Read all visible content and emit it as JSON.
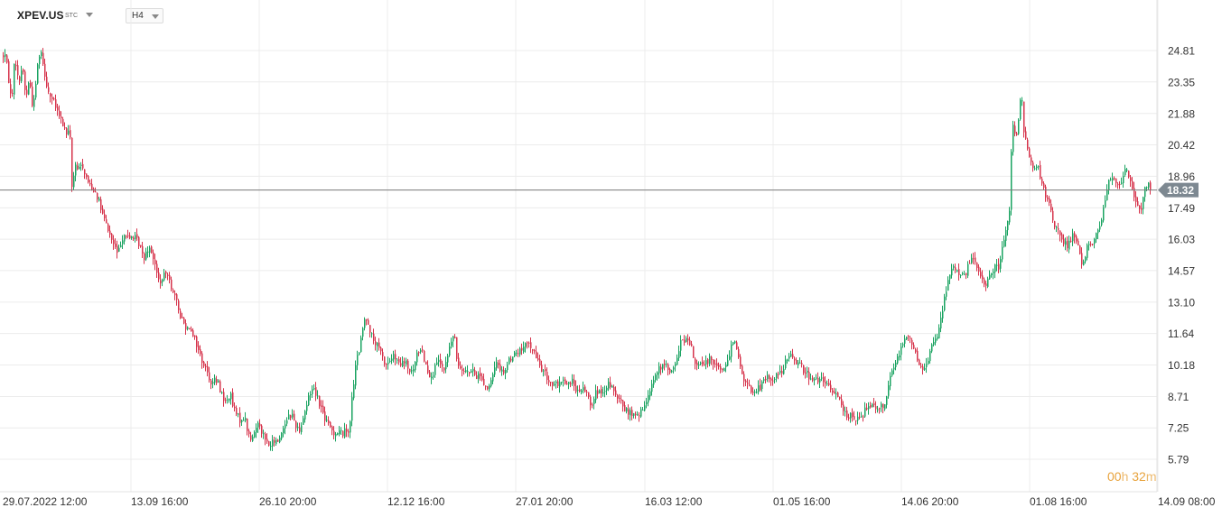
{
  "header": {
    "symbol": "XPEV.US",
    "exchange": "STC",
    "timeframe": "H4"
  },
  "countdown": {
    "hours": "00",
    "hours_unit": "h",
    "minutes": "32",
    "minutes_unit": "m"
  },
  "colors": {
    "up": "#1aa361",
    "down": "#d6334b",
    "grid": "#ececec",
    "price_line": "#7a7a7a",
    "price_tag": "#7d8891"
  },
  "chart_data": {
    "type": "candlestick",
    "title": "",
    "current_price": 18.32,
    "ylim": [
      5.79,
      26.27
    ],
    "y_ticks": [
      24.81,
      23.35,
      21.88,
      20.42,
      18.96,
      17.49,
      16.03,
      14.57,
      13.1,
      11.64,
      10.18,
      8.71,
      7.25,
      5.79
    ],
    "y_tick_labels": [
      "24.81",
      "23.35",
      "21.88",
      "20.42",
      "18.96",
      "17.49",
      "16.03",
      "14.57",
      "13.10",
      "11.64",
      "10.18",
      "8.71",
      "7.25",
      "5.79"
    ],
    "x_labels": [
      {
        "date": "29.07.2022",
        "time": "12:00"
      },
      {
        "date": "13.09",
        "time": "16:00"
      },
      {
        "date": "26.10",
        "time": "20:00"
      },
      {
        "date": "12.12",
        "time": "16:00"
      },
      {
        "date": "27.01",
        "time": "20:00"
      },
      {
        "date": "16.03",
        "time": "12:00"
      },
      {
        "date": "01.05",
        "time": "16:00"
      },
      {
        "date": "14.06",
        "time": "20:00"
      },
      {
        "date": "01.08",
        "time": "16:00"
      },
      {
        "date": "14.09",
        "time": "08:00"
      }
    ],
    "path": [
      [
        0,
        23.6
      ],
      [
        4,
        24.9
      ],
      [
        8,
        23.8
      ],
      [
        12,
        22.4
      ],
      [
        16,
        24.6
      ],
      [
        20,
        23.2
      ],
      [
        24,
        24.2
      ],
      [
        28,
        22.6
      ],
      [
        32,
        23.5
      ],
      [
        36,
        22.0
      ],
      [
        40,
        23.8
      ],
      [
        44,
        25.0
      ],
      [
        48,
        24.0
      ],
      [
        52,
        23.0
      ],
      [
        56,
        22.6
      ],
      [
        60,
        22.3
      ],
      [
        64,
        21.8
      ],
      [
        68,
        21.5
      ],
      [
        72,
        21.0
      ],
      [
        77,
        20.9
      ],
      [
        79,
        18.4
      ],
      [
        82,
        19.4
      ],
      [
        86,
        19.2
      ],
      [
        90,
        19.6
      ],
      [
        94,
        19.0
      ],
      [
        98,
        18.6
      ],
      [
        102,
        18.4
      ],
      [
        106,
        18.2
      ],
      [
        110,
        17.6
      ],
      [
        114,
        17.0
      ],
      [
        118,
        16.6
      ],
      [
        122,
        16.1
      ],
      [
        126,
        15.7
      ],
      [
        130,
        15.3
      ],
      [
        134,
        16.1
      ],
      [
        138,
        16.3
      ],
      [
        142,
        16.0
      ],
      [
        146,
        16.2
      ],
      [
        150,
        16.0
      ],
      [
        154,
        15.8
      ],
      [
        158,
        15.1
      ],
      [
        162,
        15.6
      ],
      [
        166,
        15.7
      ],
      [
        170,
        15.0
      ],
      [
        174,
        14.2
      ],
      [
        178,
        14.0
      ],
      [
        182,
        14.4
      ],
      [
        186,
        14.5
      ],
      [
        190,
        13.6
      ],
      [
        194,
        13.2
      ],
      [
        198,
        12.6
      ],
      [
        202,
        12.2
      ],
      [
        206,
        11.9
      ],
      [
        210,
        12.0
      ],
      [
        214,
        11.5
      ],
      [
        218,
        11.0
      ],
      [
        222,
        10.5
      ],
      [
        226,
        10.1
      ],
      [
        230,
        9.7
      ],
      [
        234,
        9.3
      ],
      [
        238,
        9.5
      ],
      [
        242,
        9.2
      ],
      [
        246,
        8.7
      ],
      [
        250,
        8.4
      ],
      [
        254,
        8.9
      ],
      [
        258,
        8.1
      ],
      [
        262,
        7.8
      ],
      [
        266,
        7.6
      ],
      [
        270,
        7.8
      ],
      [
        274,
        7.0
      ],
      [
        278,
        6.6
      ],
      [
        282,
        7.2
      ],
      [
        286,
        7.6
      ],
      [
        290,
        7.0
      ],
      [
        294,
        6.6
      ],
      [
        298,
        6.4
      ],
      [
        302,
        6.6
      ],
      [
        306,
        6.6
      ],
      [
        310,
        6.9
      ],
      [
        314,
        7.4
      ],
      [
        318,
        7.8
      ],
      [
        322,
        7.9
      ],
      [
        326,
        7.5
      ],
      [
        330,
        7.1
      ],
      [
        334,
        7.6
      ],
      [
        338,
        8.2
      ],
      [
        342,
        8.8
      ],
      [
        346,
        9.2
      ],
      [
        350,
        8.8
      ],
      [
        354,
        8.3
      ],
      [
        358,
        7.8
      ],
      [
        362,
        7.4
      ],
      [
        366,
        7.2
      ],
      [
        370,
        7.0
      ],
      [
        374,
        7.1
      ],
      [
        378,
        7.0
      ],
      [
        382,
        7.1
      ],
      [
        386,
        7.2
      ],
      [
        390,
        9.0
      ],
      [
        394,
        10.4
      ],
      [
        398,
        11.0
      ],
      [
        402,
        12.2
      ],
      [
        406,
        12.4
      ],
      [
        410,
        11.6
      ],
      [
        414,
        11.2
      ],
      [
        418,
        11.0
      ],
      [
        422,
        10.6
      ],
      [
        426,
        10.2
      ],
      [
        430,
        10.3
      ],
      [
        434,
        10.6
      ],
      [
        438,
        10.4
      ],
      [
        442,
        10.1
      ],
      [
        446,
        10.3
      ],
      [
        450,
        10.2
      ],
      [
        454,
        9.7
      ],
      [
        458,
        10.1
      ],
      [
        462,
        10.8
      ],
      [
        466,
        11.0
      ],
      [
        470,
        10.3
      ],
      [
        474,
        9.8
      ],
      [
        478,
        9.7
      ],
      [
        482,
        10.1
      ],
      [
        486,
        10.4
      ],
      [
        490,
        9.8
      ],
      [
        494,
        10.4
      ],
      [
        498,
        11.2
      ],
      [
        502,
        11.6
      ],
      [
        506,
        10.2
      ],
      [
        510,
        10.1
      ],
      [
        514,
        10.0
      ],
      [
        518,
        9.8
      ],
      [
        522,
        9.9
      ],
      [
        526,
        9.6
      ],
      [
        530,
        9.8
      ],
      [
        534,
        9.4
      ],
      [
        538,
        9.1
      ],
      [
        542,
        9.2
      ],
      [
        546,
        9.8
      ],
      [
        550,
        10.4
      ],
      [
        554,
        9.9
      ],
      [
        558,
        9.9
      ],
      [
        562,
        10.3
      ],
      [
        566,
        10.6
      ],
      [
        570,
        10.7
      ],
      [
        574,
        10.8
      ],
      [
        578,
        10.9
      ],
      [
        582,
        11.1
      ],
      [
        586,
        11.2
      ],
      [
        590,
        10.8
      ],
      [
        594,
        10.4
      ],
      [
        598,
        10.1
      ],
      [
        602,
        9.8
      ],
      [
        606,
        9.5
      ],
      [
        610,
        9.3
      ],
      [
        614,
        9.3
      ],
      [
        618,
        9.1
      ],
      [
        622,
        9.6
      ],
      [
        626,
        9.3
      ],
      [
        630,
        9.3
      ],
      [
        634,
        9.4
      ],
      [
        638,
        9.0
      ],
      [
        642,
        8.8
      ],
      [
        646,
        9.2
      ],
      [
        650,
        8.7
      ],
      [
        654,
        8.4
      ],
      [
        658,
        8.8
      ],
      [
        662,
        9.0
      ],
      [
        666,
        8.7
      ],
      [
        670,
        8.9
      ],
      [
        674,
        9.4
      ],
      [
        678,
        9.0
      ],
      [
        682,
        8.6
      ],
      [
        686,
        8.5
      ],
      [
        690,
        8.2
      ],
      [
        694,
        8.0
      ],
      [
        698,
        7.9
      ],
      [
        702,
        7.8
      ],
      [
        706,
        7.8
      ],
      [
        710,
        8.0
      ],
      [
        714,
        8.4
      ],
      [
        718,
        9.0
      ],
      [
        722,
        9.4
      ],
      [
        726,
        9.8
      ],
      [
        730,
        10.0
      ],
      [
        734,
        10.1
      ],
      [
        738,
        10.2
      ],
      [
        742,
        9.8
      ],
      [
        746,
        10.0
      ],
      [
        750,
        10.8
      ],
      [
        754,
        11.3
      ],
      [
        758,
        11.4
      ],
      [
        762,
        11.2
      ],
      [
        766,
        10.8
      ],
      [
        770,
        10.2
      ],
      [
        774,
        10.1
      ],
      [
        778,
        10.2
      ],
      [
        782,
        10.3
      ],
      [
        786,
        10.6
      ],
      [
        790,
        10.3
      ],
      [
        794,
        10.1
      ],
      [
        798,
        10.0
      ],
      [
        802,
        10.1
      ],
      [
        806,
        10.3
      ],
      [
        808,
        11.2
      ],
      [
        811,
        11.4
      ],
      [
        814,
        11.2
      ],
      [
        818,
        10.2
      ],
      [
        822,
        9.6
      ],
      [
        826,
        9.3
      ],
      [
        830,
        9.0
      ],
      [
        834,
        8.9
      ],
      [
        838,
        9.1
      ],
      [
        842,
        9.2
      ],
      [
        846,
        9.5
      ],
      [
        850,
        9.6
      ],
      [
        854,
        9.5
      ],
      [
        858,
        9.7
      ],
      [
        862,
        9.8
      ],
      [
        866,
        10.0
      ],
      [
        870,
        10.4
      ],
      [
        874,
        10.5
      ],
      [
        878,
        10.6
      ],
      [
        882,
        10.3
      ],
      [
        886,
        10.2
      ],
      [
        890,
        9.9
      ],
      [
        894,
        9.7
      ],
      [
        898,
        9.6
      ],
      [
        902,
        9.5
      ],
      [
        906,
        9.5
      ],
      [
        910,
        9.4
      ],
      [
        914,
        9.3
      ],
      [
        918,
        9.1
      ],
      [
        922,
        8.8
      ],
      [
        926,
        8.9
      ],
      [
        930,
        8.6
      ],
      [
        934,
        8.0
      ],
      [
        938,
        7.8
      ],
      [
        942,
        7.8
      ],
      [
        946,
        7.7
      ],
      [
        950,
        7.6
      ],
      [
        954,
        7.8
      ],
      [
        958,
        8.2
      ],
      [
        962,
        8.4
      ],
      [
        966,
        8.3
      ],
      [
        970,
        8.2
      ],
      [
        974,
        8.3
      ],
      [
        978,
        8.3
      ],
      [
        982,
        9.0
      ],
      [
        986,
        9.8
      ],
      [
        990,
        10.2
      ],
      [
        994,
        10.6
      ],
      [
        998,
        11.2
      ],
      [
        1002,
        11.6
      ],
      [
        1006,
        11.4
      ],
      [
        1010,
        11.1
      ],
      [
        1014,
        10.6
      ],
      [
        1018,
        10.1
      ],
      [
        1022,
        9.9
      ],
      [
        1026,
        10.3
      ],
      [
        1030,
        10.9
      ],
      [
        1034,
        11.5
      ],
      [
        1038,
        11.6
      ],
      [
        1042,
        12.6
      ],
      [
        1046,
        13.4
      ],
      [
        1050,
        14.4
      ],
      [
        1054,
        14.8
      ],
      [
        1058,
        14.6
      ],
      [
        1062,
        14.5
      ],
      [
        1066,
        14.2
      ],
      [
        1070,
        14.6
      ],
      [
        1074,
        15.0
      ],
      [
        1078,
        15.1
      ],
      [
        1082,
        14.6
      ],
      [
        1086,
        14.1
      ],
      [
        1090,
        13.9
      ],
      [
        1094,
        14.2
      ],
      [
        1098,
        14.6
      ],
      [
        1102,
        14.8
      ],
      [
        1106,
        14.7
      ],
      [
        1110,
        15.8
      ],
      [
        1114,
        16.6
      ],
      [
        1117,
        17.5
      ],
      [
        1120,
        21.5
      ],
      [
        1124,
        20.6
      ],
      [
        1128,
        21.9
      ],
      [
        1130,
        23.3
      ],
      [
        1132,
        21.4
      ],
      [
        1136,
        20.3
      ],
      [
        1140,
        19.8
      ],
      [
        1144,
        19.4
      ],
      [
        1148,
        19.5
      ],
      [
        1152,
        18.6
      ],
      [
        1156,
        18.2
      ],
      [
        1160,
        17.8
      ],
      [
        1164,
        17.1
      ],
      [
        1168,
        16.6
      ],
      [
        1172,
        16.4
      ],
      [
        1176,
        16.0
      ],
      [
        1180,
        15.7
      ],
      [
        1184,
        16.0
      ],
      [
        1188,
        16.2
      ],
      [
        1192,
        15.8
      ],
      [
        1196,
        15.2
      ],
      [
        1198,
        14.6
      ],
      [
        1202,
        15.6
      ],
      [
        1206,
        15.8
      ],
      [
        1210,
        15.9
      ],
      [
        1214,
        16.4
      ],
      [
        1218,
        16.8
      ],
      [
        1222,
        17.5
      ],
      [
        1226,
        18.6
      ],
      [
        1230,
        18.9
      ],
      [
        1234,
        18.7
      ],
      [
        1238,
        18.3
      ],
      [
        1242,
        19.0
      ],
      [
        1246,
        19.3
      ],
      [
        1250,
        19.0
      ],
      [
        1254,
        18.3
      ],
      [
        1258,
        17.6
      ],
      [
        1262,
        17.3
      ],
      [
        1266,
        18.4
      ],
      [
        1270,
        18.6
      ],
      [
        1274,
        18.3
      ]
    ]
  }
}
